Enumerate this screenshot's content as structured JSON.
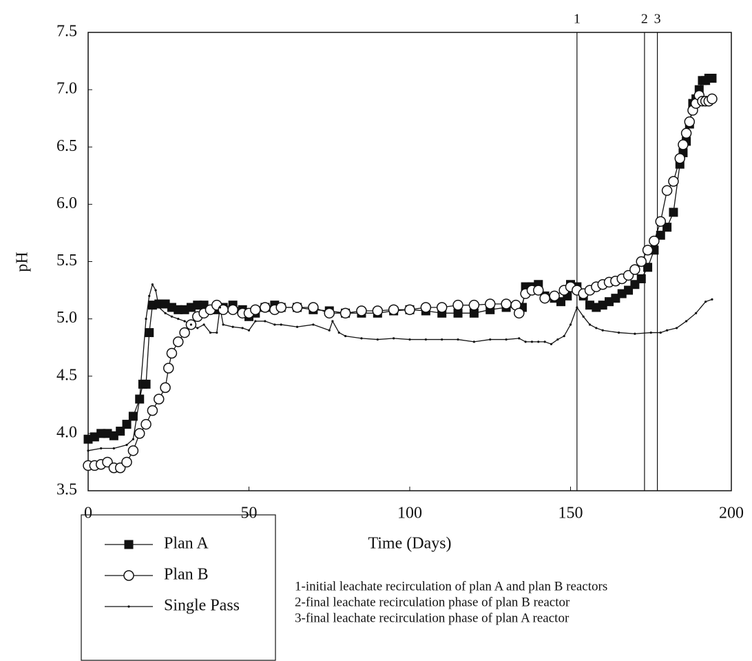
{
  "chart_data": {
    "type": "line",
    "xlabel": "Time (Days)",
    "ylabel": "pH",
    "xlim": [
      0,
      200
    ],
    "ylim": [
      3.5,
      7.5
    ],
    "xticks": [
      0,
      50,
      100,
      150,
      200
    ],
    "yticks": [
      3.5,
      {
        "value": 4,
        "label": "4.0"
      },
      4.5,
      {
        "value": 5,
        "label": "5.0"
      },
      5.5,
      {
        "value": 6,
        "label": "6.0"
      },
      6.5,
      {
        "value": 7,
        "label": "7.0"
      },
      7.5
    ],
    "legend": "bottom-left",
    "series": [
      {
        "name": "Plan A",
        "color": "#111111",
        "marker": "square",
        "x": [
          0,
          2,
          4,
          6,
          8,
          10,
          12,
          14,
          16,
          17,
          18,
          19,
          20,
          22,
          24,
          26,
          28,
          30,
          32,
          34,
          36,
          38,
          40,
          42,
          45,
          48,
          50,
          52,
          55,
          58,
          60,
          65,
          70,
          75,
          80,
          85,
          90,
          95,
          100,
          105,
          110,
          115,
          120,
          125,
          130,
          135,
          136,
          138,
          140,
          142,
          145,
          147,
          149,
          150,
          152,
          154,
          156,
          158,
          160,
          162,
          164,
          166,
          168,
          170,
          172,
          174,
          176,
          178,
          180,
          182,
          184,
          185,
          186,
          187,
          188,
          189,
          190,
          191,
          192,
          193,
          194
        ],
        "values": [
          3.95,
          3.97,
          4.0,
          4.0,
          3.98,
          4.02,
          4.08,
          4.15,
          4.3,
          4.43,
          4.43,
          4.88,
          5.12,
          5.13,
          5.13,
          5.1,
          5.08,
          5.08,
          5.1,
          5.12,
          5.12,
          5.08,
          5.08,
          5.1,
          5.12,
          5.08,
          5.02,
          5.05,
          5.1,
          5.12,
          5.1,
          5.1,
          5.08,
          5.07,
          5.05,
          5.05,
          5.05,
          5.07,
          5.08,
          5.07,
          5.05,
          5.05,
          5.05,
          5.08,
          5.1,
          5.1,
          5.28,
          5.28,
          5.3,
          5.2,
          5.18,
          5.15,
          5.2,
          5.3,
          5.28,
          5.2,
          5.12,
          5.1,
          5.12,
          5.15,
          5.18,
          5.22,
          5.25,
          5.3,
          5.35,
          5.45,
          5.6,
          5.73,
          5.8,
          5.93,
          6.35,
          6.45,
          6.55,
          6.7,
          6.88,
          6.92,
          7.0,
          7.08,
          7.08,
          7.1,
          7.1
        ]
      },
      {
        "name": "Plan B",
        "color": "#111111",
        "marker": "circle",
        "x": [
          0,
          2,
          4,
          6,
          8,
          10,
          12,
          14,
          16,
          18,
          20,
          22,
          24,
          25,
          26,
          28,
          30,
          32,
          34,
          36,
          38,
          40,
          42,
          45,
          48,
          50,
          52,
          55,
          58,
          60,
          65,
          70,
          75,
          80,
          85,
          90,
          95,
          100,
          105,
          110,
          115,
          120,
          125,
          130,
          133,
          134,
          136,
          138,
          140,
          142,
          145,
          148,
          150,
          152,
          154,
          156,
          158,
          160,
          162,
          164,
          166,
          168,
          170,
          172,
          174,
          176,
          178,
          180,
          182,
          184,
          185,
          186,
          187,
          188,
          189,
          190,
          191,
          192,
          193,
          194
        ],
        "values": [
          3.72,
          3.72,
          3.73,
          3.75,
          3.7,
          3.7,
          3.75,
          3.85,
          4.0,
          4.08,
          4.2,
          4.3,
          4.4,
          4.57,
          4.7,
          4.8,
          4.88,
          4.95,
          5.02,
          5.05,
          5.08,
          5.12,
          5.08,
          5.08,
          5.05,
          5.05,
          5.08,
          5.1,
          5.08,
          5.1,
          5.1,
          5.1,
          5.05,
          5.05,
          5.07,
          5.07,
          5.08,
          5.08,
          5.1,
          5.1,
          5.12,
          5.12,
          5.13,
          5.13,
          5.12,
          5.05,
          5.22,
          5.25,
          5.25,
          5.18,
          5.2,
          5.25,
          5.28,
          5.25,
          5.22,
          5.25,
          5.28,
          5.3,
          5.32,
          5.33,
          5.35,
          5.38,
          5.43,
          5.5,
          5.6,
          5.68,
          5.85,
          6.12,
          6.2,
          6.4,
          6.52,
          6.62,
          6.72,
          6.82,
          6.88,
          6.95,
          6.9,
          6.9,
          6.9,
          6.92
        ]
      },
      {
        "name": "Single Pass",
        "color": "#111111",
        "marker": "dot",
        "x": [
          0,
          4,
          8,
          12,
          14,
          16,
          18,
          19,
          20,
          21,
          22,
          24,
          26,
          28,
          30,
          32,
          34,
          36,
          38,
          40,
          41,
          42,
          45,
          48,
          50,
          52,
          55,
          58,
          60,
          65,
          70,
          75,
          76,
          78,
          80,
          85,
          90,
          95,
          100,
          105,
          110,
          115,
          120,
          125,
          130,
          134,
          136,
          138,
          140,
          142,
          144,
          146,
          148,
          150,
          152,
          154,
          156,
          158,
          160,
          165,
          170,
          175,
          178,
          180,
          183,
          186,
          189,
          192,
          194
        ],
        "values": [
          3.85,
          3.87,
          3.87,
          3.9,
          3.95,
          4.3,
          5.0,
          5.2,
          5.3,
          5.25,
          5.1,
          5.05,
          5.02,
          5.0,
          4.98,
          4.95,
          4.92,
          4.95,
          4.88,
          4.88,
          5.1,
          4.95,
          4.93,
          4.92,
          4.9,
          4.98,
          4.98,
          4.95,
          4.95,
          4.93,
          4.95,
          4.9,
          4.98,
          4.88,
          4.85,
          4.83,
          4.82,
          4.83,
          4.82,
          4.82,
          4.82,
          4.82,
          4.8,
          4.82,
          4.82,
          4.83,
          4.8,
          4.8,
          4.8,
          4.8,
          4.78,
          4.82,
          4.85,
          4.95,
          5.1,
          5.02,
          4.95,
          4.92,
          4.9,
          4.88,
          4.87,
          4.88,
          4.88,
          4.9,
          4.92,
          4.98,
          5.05,
          5.15,
          5.17
        ]
      }
    ],
    "vlines": [
      {
        "x": 152,
        "label": "1"
      },
      {
        "x": 173,
        "label": "2"
      },
      {
        "x": 177,
        "label": "3"
      }
    ],
    "notes": [
      "1-initial leachate recirculation of plan A and plan B reactors",
      "2-final leachate recirculation phase of plan B reactor",
      "3-final leachate recirculation phase of plan A reactor"
    ]
  }
}
